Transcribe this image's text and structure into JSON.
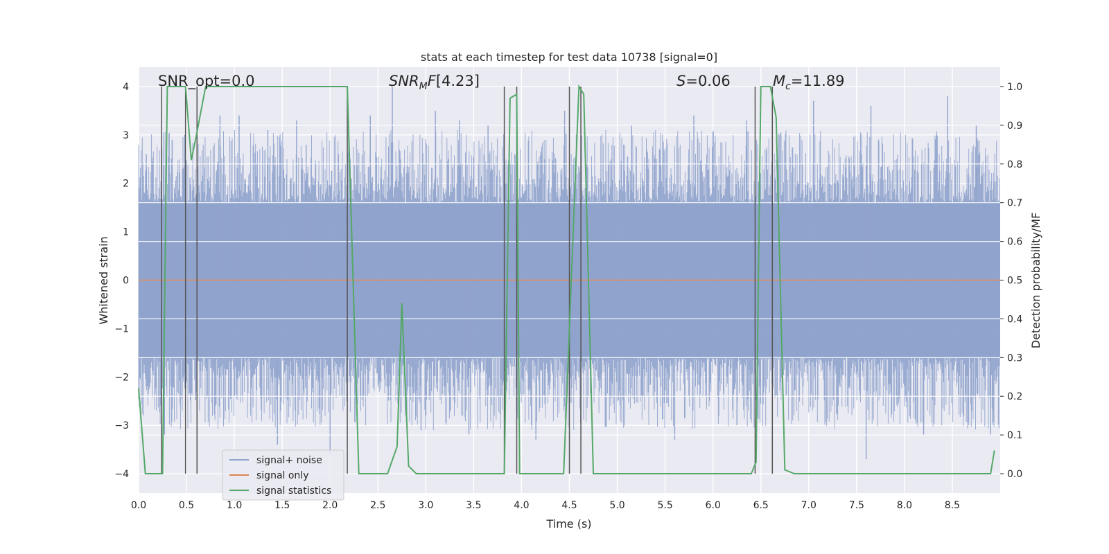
{
  "chart_data": {
    "type": "line",
    "title": "stats at each timestep for test data 10738 [signal=0]",
    "xlabel": "Time (s)",
    "ylabel": "Whitened strain",
    "y2label": "Detection probability/MF",
    "xlim": [
      0.0,
      9.0
    ],
    "ylim": [
      -4.4,
      4.4
    ],
    "y2lim": [
      -0.05,
      1.05
    ],
    "x_ticks": [
      0.0,
      0.5,
      1.0,
      1.5,
      2.0,
      2.5,
      3.0,
      3.5,
      4.0,
      4.5,
      5.0,
      5.5,
      6.0,
      6.5,
      7.0,
      7.5,
      8.0,
      8.5
    ],
    "x_tick_labels": [
      "0.0",
      "0.5",
      "1.0",
      "1.5",
      "2.0",
      "2.5",
      "3.0",
      "3.5",
      "4.0",
      "4.5",
      "5.0",
      "5.5",
      "6.0",
      "6.5",
      "7.0",
      "7.5",
      "8.0",
      "8.5"
    ],
    "y_ticks": [
      -4,
      -3,
      -2,
      -1,
      0,
      1,
      2,
      3,
      4
    ],
    "y_tick_labels": [
      "−4",
      "−3",
      "−2",
      "−1",
      "0",
      "1",
      "2",
      "3",
      "4"
    ],
    "y2_ticks": [
      0.0,
      0.1,
      0.2,
      0.3,
      0.4,
      0.5,
      0.6,
      0.7,
      0.8,
      0.9,
      1.0
    ],
    "y2_tick_labels": [
      "0.0",
      "0.1",
      "0.2",
      "0.3",
      "0.4",
      "0.5",
      "0.6",
      "0.7",
      "0.8",
      "0.9",
      "1.0"
    ],
    "grid": true,
    "legend_position": "lower-left",
    "annotations": {
      "snr_opt": "SNR_opt=0.0",
      "snr_mf": "[4.23]",
      "s_stat": "=0.06",
      "mc": "=11.89"
    },
    "series": [
      {
        "name": "signal+ noise",
        "color": "#8fa3cc",
        "axis": "left",
        "style": "dense noise band",
        "band_typical": [
          -1.6,
          1.6
        ],
        "x_range": [
          0.0,
          9.0
        ],
        "spikes": [
          {
            "x": 0.08,
            "y": 2.6
          },
          {
            "x": 0.35,
            "y": 2.9
          },
          {
            "x": 0.48,
            "y": 3.0
          },
          {
            "x": 0.85,
            "y": 3.4
          },
          {
            "x": 1.05,
            "y": 3.4
          },
          {
            "x": 1.35,
            "y": 3.1
          },
          {
            "x": 1.65,
            "y": 3.3
          },
          {
            "x": 1.75,
            "y": 2.8
          },
          {
            "x": 2.42,
            "y": 3.4
          },
          {
            "x": 2.65,
            "y": 4.0
          },
          {
            "x": 3.1,
            "y": 3.5
          },
          {
            "x": 3.35,
            "y": 3.3
          },
          {
            "x": 3.65,
            "y": 3.2
          },
          {
            "x": 4.45,
            "y": 3.5
          },
          {
            "x": 5.15,
            "y": 3.2
          },
          {
            "x": 5.8,
            "y": 3.4
          },
          {
            "x": 6.35,
            "y": 3.3
          },
          {
            "x": 7.05,
            "y": 3.7
          },
          {
            "x": 7.65,
            "y": 3.6
          },
          {
            "x": 8.45,
            "y": 3.8
          },
          {
            "x": 8.75,
            "y": 3.2
          },
          {
            "x": 1.45,
            "y": -3.4
          },
          {
            "x": 2.0,
            "y": -3.6
          },
          {
            "x": 2.95,
            "y": -3.1
          },
          {
            "x": 3.45,
            "y": -3.2
          },
          {
            "x": 4.15,
            "y": -3.3
          },
          {
            "x": 5.6,
            "y": -3.3
          },
          {
            "x": 6.25,
            "y": -3.0
          },
          {
            "x": 7.6,
            "y": -3.7
          },
          {
            "x": 8.2,
            "y": -3.2
          },
          {
            "x": 8.9,
            "y": -3.2
          },
          {
            "x": 0.27,
            "y": -3.2
          }
        ]
      },
      {
        "name": "signal only",
        "color": "#dd8452",
        "axis": "left",
        "x": [
          0.0,
          9.0
        ],
        "y": [
          0.0,
          0.0
        ]
      },
      {
        "name": "signal statistics",
        "color": "#55a868",
        "axis": "right",
        "x": [
          0.0,
          0.07,
          0.25,
          0.3,
          0.49,
          0.55,
          0.6,
          0.7,
          2.18,
          2.3,
          2.6,
          2.7,
          2.75,
          2.82,
          2.9,
          3.82,
          3.88,
          3.95,
          3.98,
          4.44,
          4.6,
          4.65,
          4.75,
          5.25,
          5.3,
          6.4,
          6.45,
          6.5,
          6.6,
          6.66,
          6.75,
          6.85,
          8.0,
          8.9,
          8.94
        ],
        "y": [
          0.22,
          0.0,
          0.0,
          1.0,
          1.0,
          0.81,
          0.87,
          1.0,
          1.0,
          0.0,
          0.0,
          0.07,
          0.44,
          0.02,
          0.0,
          0.0,
          0.97,
          0.98,
          0.0,
          0.0,
          1.0,
          0.98,
          0.0,
          0.0,
          0.0,
          0.0,
          0.03,
          1.0,
          1.0,
          0.92,
          0.01,
          0.0,
          0.0,
          0.0,
          0.06
        ]
      }
    ],
    "vertical_markers": [
      0.24,
      0.49,
      0.61,
      2.18,
      3.82,
      3.95,
      4.5,
      4.62,
      6.44,
      6.62
    ]
  }
}
